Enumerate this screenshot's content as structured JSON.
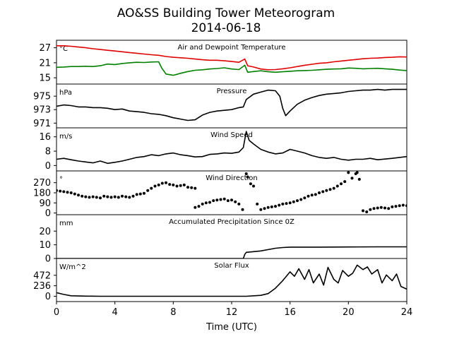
{
  "chart_data": {
    "type": "line",
    "title": "AO&SS Building Tower Meteorogram",
    "subtitle": "2014-06-18",
    "xlabel": "Time (UTC)",
    "xlim": [
      0,
      24
    ],
    "x_ticks": [
      0,
      4,
      8,
      12,
      16,
      20,
      24
    ],
    "grid": false,
    "panels": [
      {
        "title": "Air and Dewpoint Temperature",
        "unit": "°C",
        "ylim": [
          12.5,
          30
        ],
        "y_ticks": [
          15,
          21,
          27
        ],
        "series": [
          {
            "color": "#e00000",
            "style": "line",
            "x": [
              0,
              0.5,
              1,
              1.5,
              2,
              2.5,
              3,
              3.5,
              4,
              4.5,
              5,
              5.5,
              6,
              6.5,
              7,
              7.5,
              8,
              8.5,
              9,
              9.5,
              10,
              10.5,
              11,
              11.5,
              12,
              12.5,
              12.9,
              13.1,
              13.5,
              14,
              14.5,
              15,
              15.5,
              16,
              16.5,
              17,
              17.5,
              18,
              18.5,
              19,
              19.5,
              20,
              20.5,
              21,
              21.5,
              22,
              22.5,
              23,
              23.5,
              24
            ],
            "y": [
              27.8,
              27.8,
              27.6,
              27.3,
              27.0,
              26.6,
              26.3,
              26.0,
              25.7,
              25.4,
              25.1,
              24.8,
              24.5,
              24.2,
              24.0,
              23.5,
              23.2,
              23.0,
              22.8,
              22.5,
              22.2,
              22.0,
              22.0,
              21.8,
              21.5,
              21.2,
              22.5,
              19.8,
              19.3,
              18.5,
              18.2,
              18.3,
              18.6,
              19.0,
              19.5,
              20.0,
              20.4,
              20.8,
              21.0,
              21.4,
              21.7,
              22.0,
              22.3,
              22.6,
              22.8,
              22.9,
              23.1,
              23.2,
              23.4,
              23.3
            ]
          },
          {
            "color": "#008000",
            "style": "line",
            "x": [
              0,
              0.5,
              1,
              1.5,
              2,
              2.5,
              3,
              3.5,
              4,
              4.5,
              5,
              5.5,
              6,
              6.5,
              7,
              7.2,
              7.5,
              8,
              8.5,
              9,
              9.5,
              10,
              10.5,
              11,
              11.5,
              12,
              12.5,
              12.9,
              13.1,
              13.5,
              14,
              14.5,
              15,
              15.5,
              16,
              16.5,
              17,
              17.5,
              18,
              18.5,
              19,
              19.5,
              20,
              20.5,
              21,
              21.5,
              22,
              22.5,
              23,
              23.5,
              24
            ],
            "y": [
              19.2,
              19.3,
              19.5,
              19.5,
              19.6,
              19.5,
              19.8,
              20.5,
              20.3,
              20.7,
              21.0,
              21.2,
              21.1,
              21.3,
              21.4,
              19.0,
              16.5,
              16.0,
              16.8,
              17.5,
              18.0,
              18.2,
              18.5,
              18.7,
              19.0,
              18.5,
              18.3,
              20.0,
              17.2,
              17.5,
              17.8,
              17.4,
              17.2,
              17.4,
              17.6,
              17.8,
              17.9,
              18.0,
              18.2,
              18.4,
              18.5,
              18.6,
              18.9,
              18.8,
              18.6,
              18.7,
              18.8,
              18.6,
              18.4,
              18.1,
              17.9
            ]
          }
        ]
      },
      {
        "title": "Pressure",
        "unit": "hPa",
        "ylim": [
          970.3,
          976.8
        ],
        "y_ticks": [
          971,
          973,
          975
        ],
        "series": [
          {
            "color": "#000000",
            "style": "line",
            "x": [
              0,
              0.5,
              1,
              1.5,
              2,
              2.5,
              3,
              3.5,
              4,
              4.5,
              5,
              5.5,
              6,
              6.5,
              7,
              7.5,
              8,
              8.5,
              9,
              9.5,
              10,
              10.5,
              11,
              11.5,
              12,
              12.5,
              12.8,
              13.0,
              13.5,
              14,
              14.5,
              15,
              15.3,
              15.5,
              15.7,
              16,
              16.5,
              17,
              17.5,
              18,
              18.5,
              19,
              19.5,
              20,
              20.5,
              21,
              21.5,
              22,
              22.5,
              23,
              23.5,
              24
            ],
            "y": [
              973.5,
              973.7,
              973.6,
              973.4,
              973.4,
              973.3,
              973.3,
              973.2,
              973.0,
              973.1,
              972.8,
              972.7,
              972.6,
              972.4,
              972.3,
              972.1,
              971.8,
              971.6,
              971.4,
              971.5,
              972.2,
              972.6,
              972.8,
              972.9,
              973.0,
              973.3,
              973.4,
              974.5,
              975.3,
              975.6,
              975.9,
              975.8,
              975.0,
              973.2,
              972.1,
              972.8,
              973.8,
              974.4,
              974.8,
              975.1,
              975.3,
              975.4,
              975.5,
              975.7,
              975.8,
              975.9,
              975.9,
              976.0,
              975.9,
              976.0,
              976.0,
              976.0
            ]
          }
        ]
      },
      {
        "title": "Wind Speed",
        "unit": "m/s",
        "ylim": [
          -3,
          21
        ],
        "y_ticks": [
          0,
          8,
          16
        ],
        "series": [
          {
            "color": "#000000",
            "style": "line",
            "x": [
              0,
              0.5,
              1,
              1.5,
              2,
              2.5,
              3,
              3.5,
              4,
              4.5,
              5,
              5.5,
              6,
              6.5,
              7,
              7.5,
              8,
              8.5,
              9,
              9.5,
              10,
              10.5,
              11,
              11.5,
              12,
              12.5,
              12.8,
              13.0,
              13.2,
              13.5,
              14,
              14.5,
              15,
              15.5,
              16,
              16.5,
              17,
              17.5,
              18,
              18.5,
              19,
              19.5,
              20,
              20.5,
              21,
              21.5,
              22,
              22.5,
              23,
              23.5,
              24
            ],
            "y": [
              3.5,
              4.0,
              3.2,
              2.5,
              2.0,
              1.5,
              2.5,
              1.2,
              1.8,
              2.5,
              3.5,
              4.5,
              5.0,
              6.0,
              5.5,
              6.5,
              7.0,
              6.0,
              5.5,
              4.8,
              5.0,
              6.2,
              6.5,
              7.0,
              6.8,
              7.5,
              10.0,
              19.0,
              14.0,
              12.0,
              9.0,
              7.5,
              6.5,
              7.0,
              9.0,
              8.0,
              7.0,
              5.5,
              4.5,
              4.0,
              4.5,
              3.5,
              3.0,
              3.5,
              3.5,
              4.0,
              3.2,
              3.6,
              4.0,
              4.5,
              5.0
            ]
          }
        ]
      },
      {
        "title": "Wind Direction",
        "unit": "°",
        "ylim": [
          -15,
          375
        ],
        "y_ticks": [
          0,
          90,
          180,
          270
        ],
        "series": [
          {
            "color": "#000000",
            "style": "dots",
            "x": [
              0,
              0.25,
              0.5,
              0.75,
              1,
              1.25,
              1.5,
              1.75,
              2,
              2.25,
              2.5,
              2.75,
              3,
              3.25,
              3.5,
              3.75,
              4,
              4.25,
              4.5,
              4.75,
              5,
              5.25,
              5.5,
              5.75,
              6,
              6.25,
              6.5,
              6.75,
              7,
              7.25,
              7.5,
              7.75,
              8,
              8.25,
              8.5,
              8.75,
              9,
              9.25,
              9.5,
              9.5,
              9.75,
              10,
              10.25,
              10.5,
              10.75,
              11,
              11.25,
              11.5,
              11.75,
              12,
              12.25,
              12.5,
              12.75,
              13.0,
              13.1,
              13.3,
              13.5,
              13.75,
              14,
              14.25,
              14.5,
              14.75,
              15,
              15.25,
              15.5,
              15.75,
              16,
              16.25,
              16.5,
              16.75,
              17,
              17.25,
              17.5,
              17.75,
              18,
              18.25,
              18.5,
              18.75,
              19,
              19.25,
              19.5,
              19.75,
              20.0,
              20.25,
              20.5,
              20.6,
              20.75,
              21,
              21.25,
              21.5,
              21.75,
              22,
              22.25,
              22.5,
              22.75,
              23,
              23.25,
              23.5,
              23.75,
              24
            ],
            "y": [
              200,
              195,
              190,
              185,
              180,
              170,
              160,
              150,
              145,
              140,
              145,
              140,
              135,
              150,
              145,
              140,
              145,
              140,
              150,
              145,
              140,
              150,
              165,
              170,
              175,
              200,
              220,
              240,
              250,
              265,
              270,
              255,
              250,
              240,
              245,
              250,
              230,
              225,
              220,
              50,
              60,
              80,
              90,
              95,
              110,
              115,
              120,
              125,
              110,
              115,
              100,
              80,
              30,
              350,
              320,
              260,
              240,
              80,
              30,
              40,
              50,
              55,
              60,
              70,
              80,
              85,
              90,
              100,
              110,
              120,
              135,
              150,
              160,
              165,
              180,
              190,
              200,
              210,
              220,
              240,
              260,
              280,
              360,
              310,
              350,
              360,
              300,
              20,
              10,
              30,
              40,
              45,
              50,
              45,
              40,
              55,
              60,
              65,
              70,
              65
            ]
          }
        ]
      },
      {
        "title": "Accumulated Precipitation Since 0Z",
        "unit": "mm",
        "ylim": [
          0,
          32
        ],
        "y_ticks": [
          0,
          10,
          20
        ],
        "series": [
          {
            "color": "#000000",
            "style": "line",
            "x": [
              0,
              12.8,
              12.9,
              13.0,
              13.5,
              14.0,
              14.5,
              15.0,
              15.5,
              16.0,
              16.5,
              18,
              20,
              22,
              24
            ],
            "y": [
              0,
              0,
              3.0,
              4.5,
              5.0,
              5.5,
              6.5,
              7.5,
              8.0,
              8.3,
              8.3,
              8.3,
              8.4,
              8.5,
              8.5
            ]
          }
        ]
      },
      {
        "title": "Solar Flux",
        "unit": "W/m^2",
        "ylim": [
          -120,
          850
        ],
        "y_ticks": [
          0,
          236,
          472
        ],
        "series": [
          {
            "color": "#000000",
            "style": "line",
            "x": [
              0,
              0.5,
              1,
              2,
              3,
              4,
              5,
              6,
              7,
              8,
              9,
              10,
              11,
              12,
              13,
              14,
              14.5,
              15,
              15.5,
              16,
              16.3,
              16.6,
              17,
              17.3,
              17.6,
              18,
              18.3,
              18.6,
              19,
              19.3,
              19.6,
              20,
              20.3,
              20.6,
              21,
              21.3,
              21.6,
              22,
              22.3,
              22.6,
              23,
              23.3,
              23.6,
              24
            ],
            "y": [
              80,
              40,
              10,
              2,
              0,
              0,
              0,
              0,
              0,
              0,
              0,
              0,
              0,
              0,
              0,
              20,
              60,
              180,
              350,
              550,
              450,
              620,
              380,
              600,
              300,
              500,
              250,
              650,
              380,
              300,
              580,
              450,
              520,
              700,
              600,
              660,
              500,
              600,
              300,
              480,
              350,
              500,
              220,
              160
            ]
          }
        ]
      }
    ]
  }
}
